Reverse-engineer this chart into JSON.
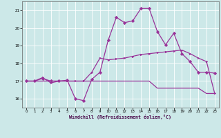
{
  "background_color": "#cce8e8",
  "grid_color": "#ffffff",
  "line_color": "#993399",
  "xlabel": "Windchill (Refroidissement éolien,°C)",
  "xlim": [
    -0.5,
    23.5
  ],
  "ylim": [
    15.5,
    21.5
  ],
  "yticks": [
    16,
    17,
    18,
    19,
    20,
    21
  ],
  "xticks": [
    0,
    1,
    2,
    3,
    4,
    5,
    6,
    7,
    8,
    9,
    10,
    11,
    12,
    13,
    14,
    15,
    16,
    17,
    18,
    19,
    20,
    21,
    22,
    23
  ],
  "s1_x": [
    0,
    1,
    2,
    3,
    4,
    5,
    6,
    7,
    8,
    9,
    10,
    11,
    12,
    13,
    14,
    15,
    16,
    17,
    18,
    19,
    20,
    21,
    22,
    23
  ],
  "s1_y": [
    17.0,
    17.0,
    17.15,
    17.0,
    17.0,
    17.05,
    16.0,
    15.9,
    17.1,
    17.5,
    19.3,
    20.6,
    20.3,
    20.4,
    21.1,
    21.1,
    19.8,
    19.05,
    19.7,
    18.55,
    18.1,
    17.5,
    17.5,
    17.45
  ],
  "s2_x": [
    0,
    1,
    2,
    3,
    4,
    5,
    6,
    7,
    8,
    9,
    10,
    11,
    12,
    13,
    14,
    15,
    16,
    17,
    18,
    19,
    20,
    21,
    22,
    23
  ],
  "s2_y": [
    17.0,
    17.0,
    17.2,
    16.9,
    17.0,
    17.0,
    17.0,
    17.0,
    17.5,
    18.3,
    18.2,
    18.25,
    18.3,
    18.4,
    18.5,
    18.55,
    18.6,
    18.65,
    18.7,
    18.75,
    18.55,
    18.3,
    18.1,
    16.3
  ],
  "s3_x": [
    0,
    1,
    2,
    3,
    4,
    5,
    6,
    7,
    8,
    9,
    10,
    11,
    12,
    13,
    14,
    15,
    16,
    17,
    18,
    19,
    20,
    21,
    22,
    23
  ],
  "s3_y": [
    17.0,
    17.0,
    17.0,
    17.0,
    17.0,
    17.0,
    17.0,
    17.0,
    17.0,
    17.0,
    17.0,
    17.0,
    17.0,
    17.0,
    17.0,
    17.0,
    16.6,
    16.6,
    16.6,
    16.6,
    16.6,
    16.6,
    16.3,
    16.3
  ]
}
